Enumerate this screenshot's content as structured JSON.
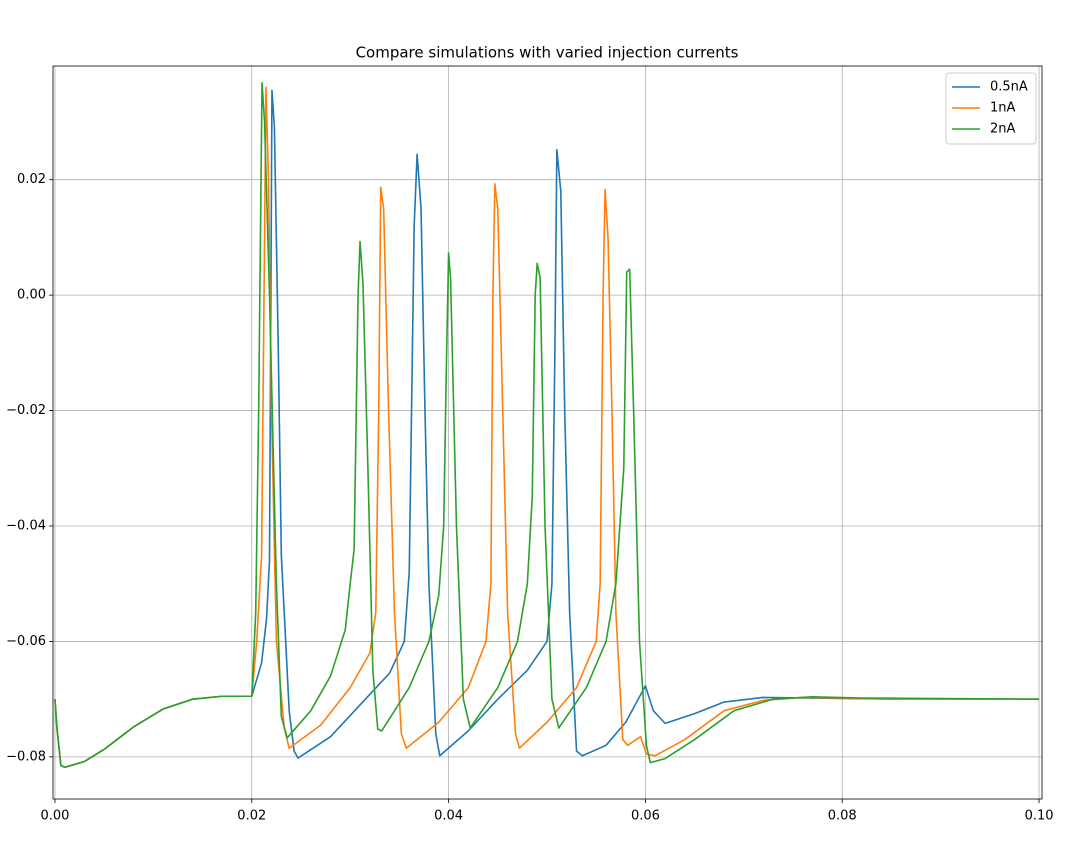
{
  "chart_data": {
    "type": "line",
    "title": "Compare simulations with varied injection currents",
    "xlim": [
      -0.0002,
      0.1003
    ],
    "ylim": [
      -0.0873,
      0.0397
    ],
    "xticks": [
      {
        "value": 0,
        "label": "0.00"
      },
      {
        "value": 0.02,
        "label": "0.02"
      },
      {
        "value": 0.04,
        "label": "0.04"
      },
      {
        "value": 0.06,
        "label": "0.06"
      },
      {
        "value": 0.08,
        "label": "0.08"
      },
      {
        "value": 0.1,
        "label": "0.10"
      }
    ],
    "yticks": [
      {
        "value": -0.08,
        "label": "−0.08"
      },
      {
        "value": -0.06,
        "label": "−0.06"
      },
      {
        "value": -0.04,
        "label": "−0.04"
      },
      {
        "value": -0.02,
        "label": "−0.02"
      },
      {
        "value": 0,
        "label": "0.00"
      },
      {
        "value": 0.02,
        "label": "0.02"
      }
    ],
    "grid": true,
    "legend": "upper right",
    "series": [
      {
        "name": "0.5nA",
        "color": "#1f77b4",
        "x": [
          0,
          0.0002,
          0.0006,
          0.001,
          0.003,
          0.005,
          0.008,
          0.011,
          0.014,
          0.017,
          0.02,
          0.021,
          0.0215,
          0.0218,
          0.02205,
          0.0223,
          0.0227,
          0.023,
          0.0238,
          0.0243,
          0.0247,
          0.028,
          0.031,
          0.034,
          0.0355,
          0.036,
          0.0365,
          0.0368,
          0.0372,
          0.0376,
          0.038,
          0.0387,
          0.0391,
          0.042,
          0.045,
          0.048,
          0.05,
          0.0505,
          0.0508,
          0.051,
          0.0514,
          0.0518,
          0.0523,
          0.053,
          0.0536,
          0.056,
          0.058,
          0.06,
          0.0608,
          0.062,
          0.065,
          0.068,
          0.072,
          0.076,
          0.085,
          0.1
        ],
        "values": [
          -0.07,
          -0.075,
          -0.0815,
          -0.0818,
          -0.0808,
          -0.0787,
          -0.0748,
          -0.0717,
          -0.07,
          -0.0695,
          -0.0695,
          -0.0637,
          -0.056,
          -0.046,
          0.0355,
          0.029,
          -0.01,
          -0.045,
          -0.072,
          -0.079,
          -0.0802,
          -0.0765,
          -0.071,
          -0.0655,
          -0.06,
          -0.048,
          0.012,
          0.0244,
          0.015,
          -0.02,
          -0.05,
          -0.076,
          -0.0798,
          -0.0755,
          -0.07,
          -0.065,
          -0.06,
          -0.05,
          -0.01,
          0.0252,
          0.018,
          -0.02,
          -0.055,
          -0.079,
          -0.0798,
          -0.078,
          -0.074,
          -0.0677,
          -0.072,
          -0.0742,
          -0.0725,
          -0.0705,
          -0.0697,
          -0.0698,
          -0.07,
          -0.07
        ]
      },
      {
        "name": "1nA",
        "color": "#ff7f0e",
        "x": [
          0,
          0.0002,
          0.0006,
          0.001,
          0.003,
          0.005,
          0.008,
          0.011,
          0.014,
          0.017,
          0.02,
          0.0205,
          0.021,
          0.02144,
          0.0217,
          0.022,
          0.0225,
          0.0233,
          0.0238,
          0.027,
          0.03,
          0.032,
          0.0326,
          0.0329,
          0.0331,
          0.0334,
          0.0339,
          0.0345,
          0.0352,
          0.0357,
          0.039,
          0.042,
          0.0438,
          0.0443,
          0.0445,
          0.0447,
          0.045,
          0.0455,
          0.046,
          0.0468,
          0.0472,
          0.05,
          0.053,
          0.055,
          0.0554,
          0.0557,
          0.0559,
          0.0562,
          0.0566,
          0.057,
          0.0577,
          0.0582,
          0.0595,
          0.0601,
          0.061,
          0.064,
          0.068,
          0.072,
          0.076,
          0.08,
          0.085,
          0.1
        ],
        "values": [
          -0.07,
          -0.075,
          -0.0815,
          -0.0818,
          -0.0808,
          -0.0787,
          -0.0748,
          -0.0717,
          -0.07,
          -0.0695,
          -0.0695,
          -0.06,
          -0.045,
          0.036,
          0.02,
          -0.02,
          -0.06,
          -0.075,
          -0.0785,
          -0.0745,
          -0.068,
          -0.062,
          -0.055,
          -0.02,
          0.0187,
          0.015,
          -0.02,
          -0.055,
          -0.076,
          -0.0785,
          -0.074,
          -0.068,
          -0.06,
          -0.05,
          0.0,
          0.0193,
          0.015,
          -0.02,
          -0.055,
          -0.076,
          -0.0785,
          -0.074,
          -0.068,
          -0.06,
          -0.05,
          0.0,
          0.0183,
          0.01,
          -0.02,
          -0.055,
          -0.077,
          -0.078,
          -0.0765,
          -0.0795,
          -0.0798,
          -0.077,
          -0.072,
          -0.0702,
          -0.0697,
          -0.0698,
          -0.07,
          -0.07
        ]
      },
      {
        "name": "2nA",
        "color": "#2ca02c",
        "x": [
          0,
          0.0002,
          0.0006,
          0.001,
          0.003,
          0.005,
          0.008,
          0.011,
          0.014,
          0.017,
          0.02,
          0.0204,
          0.0207,
          0.02104,
          0.0213,
          0.0218,
          0.0225,
          0.023,
          0.0236,
          0.026,
          0.028,
          0.0295,
          0.03,
          0.0304,
          0.0308,
          0.031,
          0.0313,
          0.0318,
          0.0323,
          0.0328,
          0.0332,
          0.036,
          0.038,
          0.039,
          0.0395,
          0.0398,
          0.04,
          0.0402,
          0.0408,
          0.0415,
          0.0422,
          0.045,
          0.047,
          0.048,
          0.0485,
          0.0488,
          0.049,
          0.0493,
          0.0498,
          0.0505,
          0.0512,
          0.054,
          0.056,
          0.057,
          0.0578,
          0.0581,
          0.0584,
          0.0588,
          0.0594,
          0.0601,
          0.0605,
          0.062,
          0.065,
          0.069,
          0.073,
          0.077,
          0.082,
          0.1
        ],
        "values": [
          -0.07,
          -0.075,
          -0.0815,
          -0.0818,
          -0.0808,
          -0.0787,
          -0.0748,
          -0.0717,
          -0.07,
          -0.0695,
          -0.0695,
          -0.055,
          -0.02,
          0.0368,
          0.03,
          0.0,
          -0.05,
          -0.073,
          -0.0767,
          -0.072,
          -0.066,
          -0.058,
          -0.05,
          -0.044,
          0.0,
          0.0093,
          0.002,
          -0.03,
          -0.065,
          -0.0752,
          -0.0755,
          -0.068,
          -0.06,
          -0.052,
          -0.04,
          -0.01,
          0.0073,
          0.003,
          -0.04,
          -0.07,
          -0.075,
          -0.068,
          -0.06,
          -0.05,
          -0.035,
          0.0,
          0.0055,
          0.003,
          -0.04,
          -0.07,
          -0.075,
          -0.068,
          -0.06,
          -0.05,
          -0.03,
          0.004,
          0.0045,
          -0.02,
          -0.06,
          -0.078,
          -0.081,
          -0.0803,
          -0.077,
          -0.072,
          -0.07,
          -0.0696,
          -0.0698,
          -0.07
        ]
      }
    ]
  }
}
